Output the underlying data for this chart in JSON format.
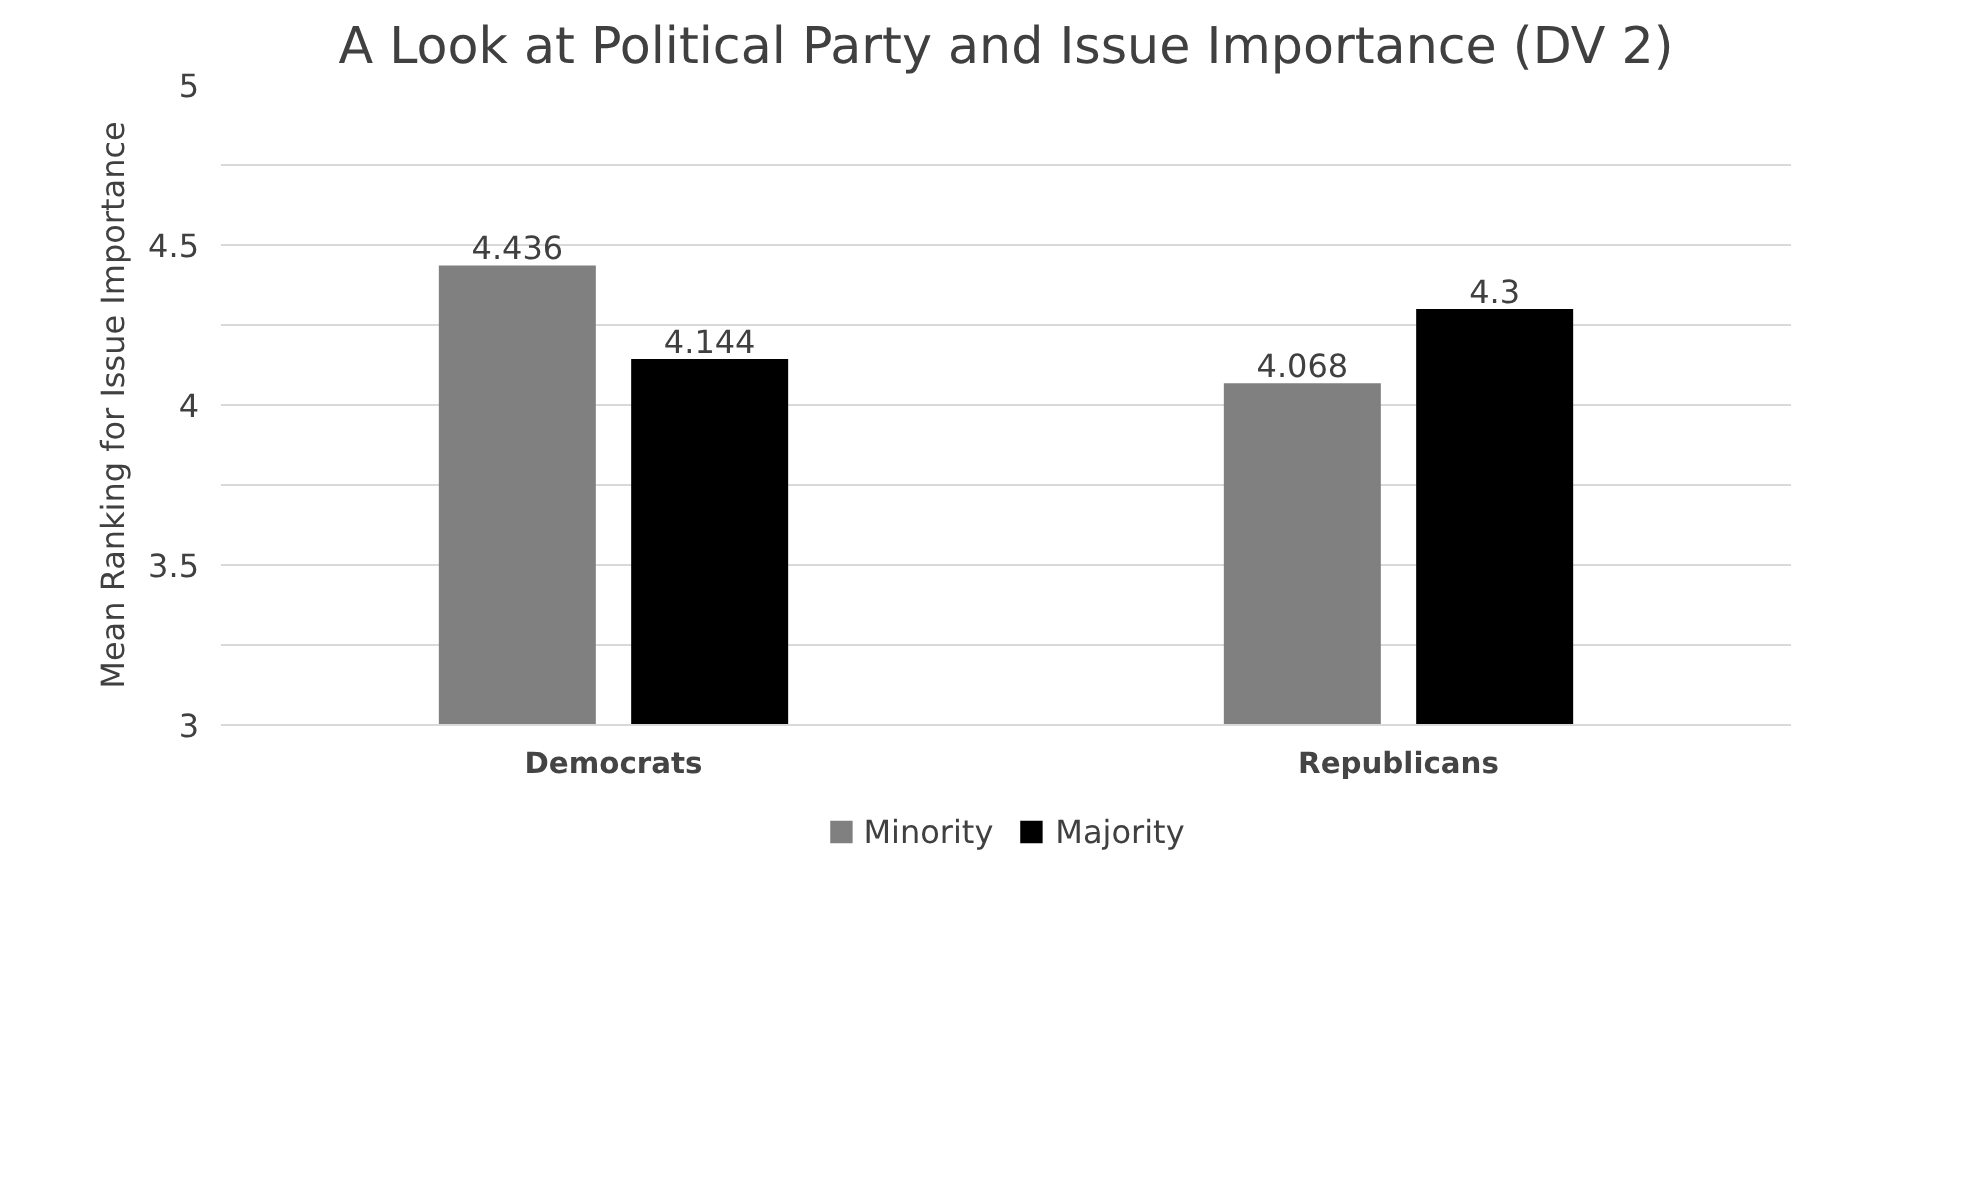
{
  "chart_data": {
    "type": "bar",
    "title": "A Look at Political Party and Issue Importance (DV 2)",
    "ylabel": "Mean Ranking for Issue Importance",
    "categories": [
      "Democrats",
      "Republicans"
    ],
    "series": [
      {
        "name": "Minority",
        "color": "#808080",
        "values": [
          4.436,
          4.068
        ]
      },
      {
        "name": "Majority",
        "color": "#000000",
        "values": [
          4.144,
          4.3
        ]
      }
    ],
    "ylim": [
      3,
      5
    ],
    "yticks": [
      3,
      {
        "value": 3.25,
        "label": null
      },
      3.5,
      {
        "value": 3.75,
        "label": null
      },
      4,
      {
        "value": 4.25,
        "label": null
      },
      4.5,
      {
        "value": 4.75,
        "label": null
      },
      5
    ],
    "grid": "y",
    "data_labels": true,
    "legend": "bottom"
  }
}
